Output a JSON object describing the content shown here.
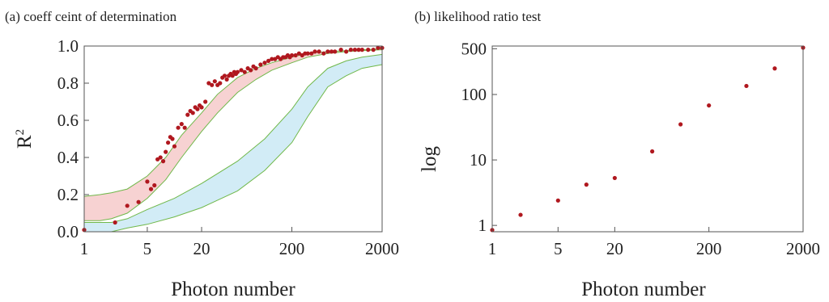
{
  "chart_data": [
    {
      "type": "scatter",
      "panel_label": "(a) coeff ceint of determination",
      "xlabel": "Photon number",
      "ylabel": "R",
      "ylabel_superscript": "2",
      "x_scale": "log",
      "xlim": [
        1,
        2000
      ],
      "ylim": [
        0,
        1.0
      ],
      "x_ticks": [
        1,
        5,
        20,
        200,
        2000
      ],
      "y_ticks": [
        "0.0",
        "0.2",
        "0.4",
        "0.6",
        "0.8",
        "1.0"
      ],
      "grid": false,
      "colors": {
        "points": "#b0181f",
        "band_data": "#f7d2d2",
        "band_ref": "#d2ecf6",
        "band_edge": "#70b84a"
      },
      "band_data": {
        "x": [
          1,
          1.5,
          2,
          3,
          5,
          8,
          12,
          20,
          30,
          50,
          80,
          120,
          200,
          300,
          500,
          800,
          1200,
          2000
        ],
        "upper": [
          0.19,
          0.2,
          0.21,
          0.23,
          0.3,
          0.4,
          0.52,
          0.64,
          0.74,
          0.83,
          0.88,
          0.91,
          0.94,
          0.96,
          0.97,
          0.975,
          0.98,
          0.985
        ],
        "lower": [
          0.06,
          0.06,
          0.07,
          0.1,
          0.18,
          0.28,
          0.4,
          0.54,
          0.64,
          0.75,
          0.82,
          0.87,
          0.91,
          0.94,
          0.96,
          0.97,
          0.975,
          0.98
        ]
      },
      "band_reference": {
        "x": [
          1,
          2,
          3,
          5,
          10,
          20,
          50,
          100,
          200,
          300,
          500,
          800,
          1200,
          2000
        ],
        "upper": [
          0.05,
          0.05,
          0.07,
          0.12,
          0.18,
          0.26,
          0.38,
          0.5,
          0.66,
          0.78,
          0.88,
          0.92,
          0.94,
          0.955
        ],
        "lower": [
          0.0,
          0.0,
          0.02,
          0.04,
          0.08,
          0.13,
          0.22,
          0.33,
          0.48,
          0.62,
          0.78,
          0.84,
          0.88,
          0.9
        ]
      },
      "points": {
        "x": [
          1,
          2.2,
          3,
          4,
          5,
          5.5,
          6,
          6.5,
          7,
          7.5,
          8,
          8.5,
          9,
          9.5,
          10,
          11,
          12,
          13,
          14,
          15,
          16,
          17,
          18,
          19,
          20,
          22,
          24,
          26,
          28,
          30,
          32,
          34,
          36,
          38,
          40,
          42,
          44,
          46,
          48,
          50,
          55,
          60,
          65,
          70,
          75,
          80,
          90,
          100,
          110,
          120,
          130,
          140,
          150,
          160,
          170,
          180,
          190,
          200,
          220,
          240,
          260,
          280,
          300,
          330,
          360,
          400,
          450,
          500,
          550,
          600,
          700,
          800,
          900,
          1000,
          1100,
          1200,
          1400,
          1600,
          1800,
          2000
        ],
        "y": [
          0.01,
          0.05,
          0.14,
          0.16,
          0.27,
          0.23,
          0.25,
          0.39,
          0.4,
          0.38,
          0.43,
          0.48,
          0.51,
          0.5,
          0.46,
          0.56,
          0.58,
          0.56,
          0.63,
          0.65,
          0.64,
          0.67,
          0.66,
          0.68,
          0.67,
          0.7,
          0.8,
          0.79,
          0.81,
          0.79,
          0.8,
          0.83,
          0.84,
          0.82,
          0.84,
          0.85,
          0.84,
          0.86,
          0.85,
          0.86,
          0.87,
          0.86,
          0.88,
          0.87,
          0.89,
          0.88,
          0.9,
          0.91,
          0.92,
          0.93,
          0.93,
          0.94,
          0.93,
          0.94,
          0.94,
          0.95,
          0.94,
          0.95,
          0.95,
          0.96,
          0.95,
          0.96,
          0.96,
          0.96,
          0.97,
          0.97,
          0.96,
          0.97,
          0.97,
          0.97,
          0.98,
          0.97,
          0.98,
          0.98,
          0.98,
          0.98,
          0.98,
          0.98,
          0.99,
          0.99
        ]
      }
    },
    {
      "type": "scatter",
      "panel_label": "(b)  likelihood ratio test",
      "xlabel": "Photon number",
      "ylabel": "log",
      "x_scale": "log",
      "y_scale": "log",
      "xlim": [
        1,
        2000
      ],
      "ylim": [
        0.8,
        550
      ],
      "x_ticks": [
        1,
        5,
        20,
        200,
        2000
      ],
      "y_ticks": [
        1,
        10,
        100,
        500
      ],
      "grid": false,
      "colors": {
        "points": "#b0181f"
      },
      "points": {
        "x": [
          1,
          2,
          5,
          10,
          20,
          50,
          100,
          200,
          500,
          1000,
          2000
        ],
        "y": [
          0.85,
          1.45,
          2.4,
          4.2,
          5.3,
          13.5,
          35,
          68,
          135,
          250,
          520
        ]
      }
    }
  ]
}
